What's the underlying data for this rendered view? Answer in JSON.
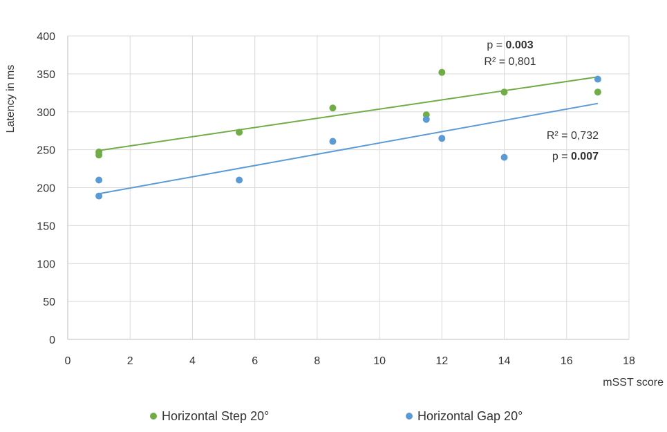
{
  "chart_data": {
    "type": "scatter",
    "title": "",
    "xlabel": "mSST score",
    "ylabel": "Latency in ms",
    "xlim": [
      0,
      18
    ],
    "ylim": [
      0,
      400
    ],
    "xticks": [
      0,
      2,
      4,
      6,
      8,
      10,
      12,
      14,
      16,
      18
    ],
    "yticks": [
      0,
      50,
      100,
      150,
      200,
      250,
      300,
      350,
      400
    ],
    "grid": true,
    "legend_position": "bottom",
    "series": [
      {
        "name": "Horizontal Step 20°",
        "color": "#70ad47",
        "points": [
          {
            "x": 1,
            "y": 247
          },
          {
            "x": 1,
            "y": 243
          },
          {
            "x": 5.5,
            "y": 273
          },
          {
            "x": 8.5,
            "y": 305
          },
          {
            "x": 11.5,
            "y": 296
          },
          {
            "x": 12,
            "y": 352
          },
          {
            "x": 14,
            "y": 326
          },
          {
            "x": 17,
            "y": 326
          }
        ],
        "trendline": {
          "x": [
            1,
            17
          ],
          "y": [
            249,
            346
          ]
        }
      },
      {
        "name": "Horizontal Gap 20°",
        "color": "#5b9bd5",
        "points": [
          {
            "x": 1,
            "y": 210
          },
          {
            "x": 1,
            "y": 189
          },
          {
            "x": 5.5,
            "y": 210
          },
          {
            "x": 8.5,
            "y": 261
          },
          {
            "x": 11.5,
            "y": 290
          },
          {
            "x": 12,
            "y": 265
          },
          {
            "x": 14,
            "y": 240
          },
          {
            "x": 17,
            "y": 343
          }
        ],
        "trendline": {
          "x": [
            1,
            17
          ],
          "y": [
            192,
            311
          ]
        }
      }
    ],
    "annotations": {
      "step_p_prefix": "p = ",
      "step_p_value": "0.003",
      "step_r2": "R² = 0,801",
      "gap_r2": "R² = 0,732",
      "gap_p_prefix": "p = ",
      "gap_p_value": "0.007"
    }
  }
}
